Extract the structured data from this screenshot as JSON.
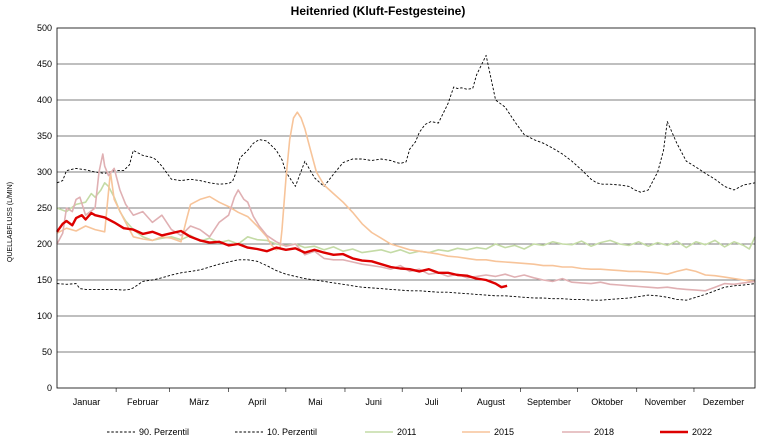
{
  "chart_data": {
    "type": "line",
    "title": "Heitenried (Kluft-Festgesteine)",
    "ylabel": "QUELLABFLUSS (L/MIN)",
    "xlabel": "",
    "ylim": [
      0,
      500
    ],
    "yticks": [
      0,
      50,
      100,
      150,
      200,
      250,
      300,
      350,
      400,
      450,
      500
    ],
    "xlim": [
      0,
      366
    ],
    "grid": "horizontal",
    "legend": "bottom",
    "categories": [
      "Januar",
      "Februar",
      "März",
      "April",
      "Mai",
      "Juni",
      "Juli",
      "August",
      "September",
      "Oktober",
      "November",
      "Dezember"
    ],
    "series": [
      {
        "name": "90. Perzentil",
        "color": "#000000",
        "dash": "dashed",
        "x": [
          0,
          3,
          5,
          10,
          15,
          20,
          25,
          30,
          35,
          38,
          40,
          45,
          50,
          52,
          55,
          60,
          65,
          70,
          75,
          80,
          85,
          90,
          92,
          94,
          96,
          100,
          103,
          106,
          110,
          115,
          118,
          120,
          125,
          130,
          135,
          140,
          145,
          150,
          155,
          160,
          165,
          170,
          175,
          178,
          180,
          183,
          185,
          188,
          190,
          193,
          196,
          200,
          205,
          208,
          210,
          212,
          215,
          218,
          220,
          225,
          230,
          235,
          240,
          245,
          250,
          255,
          260,
          265,
          270,
          275,
          280,
          283,
          286,
          290,
          295,
          300,
          303,
          306,
          310,
          315,
          318,
          320,
          325,
          330,
          335,
          340,
          345,
          350,
          355,
          360,
          366
        ],
        "values": [
          285,
          288,
          302,
          305,
          303,
          300,
          298,
          302,
          302,
          310,
          330,
          323,
          320,
          317,
          308,
          290,
          288,
          290,
          288,
          285,
          283,
          284,
          287,
          300,
          320,
          330,
          340,
          345,
          343,
          330,
          317,
          300,
          280,
          315,
          292,
          280,
          297,
          313,
          318,
          318,
          316,
          318,
          316,
          313,
          312,
          314,
          332,
          342,
          355,
          366,
          370,
          368,
          395,
          418,
          416,
          417,
          415,
          416,
          435,
          462,
          400,
          390,
          370,
          352,
          345,
          340,
          333,
          325,
          315,
          303,
          290,
          285,
          283,
          283,
          282,
          280,
          275,
          272,
          275,
          300,
          330,
          370,
          340,
          315,
          307,
          298,
          290,
          280,
          275,
          282,
          285
        ]
      },
      {
        "name": "10. Perzentil",
        "color": "#000000",
        "dash": "dashed",
        "x": [
          0,
          5,
          10,
          12,
          15,
          20,
          30,
          35,
          38,
          40,
          45,
          50,
          55,
          60,
          65,
          70,
          75,
          80,
          85,
          90,
          95,
          100,
          105,
          110,
          115,
          120,
          125,
          130,
          135,
          140,
          145,
          150,
          155,
          160,
          165,
          170,
          175,
          180,
          185,
          190,
          195,
          200,
          205,
          210,
          215,
          220,
          225,
          230,
          235,
          240,
          245,
          250,
          255,
          260,
          265,
          270,
          275,
          280,
          285,
          290,
          295,
          300,
          305,
          310,
          315,
          320,
          325,
          330,
          335,
          340,
          345,
          350,
          355,
          360,
          366
        ],
        "values": [
          145,
          144,
          145,
          138,
          137,
          137,
          137,
          136,
          137,
          139,
          148,
          150,
          153,
          157,
          160,
          162,
          164,
          168,
          172,
          175,
          178,
          178,
          176,
          170,
          163,
          158,
          155,
          152,
          150,
          148,
          146,
          144,
          142,
          140,
          139,
          138,
          137,
          136,
          135,
          135,
          134,
          133,
          133,
          132,
          131,
          130,
          129,
          128,
          128,
          127,
          126,
          125,
          125,
          124,
          124,
          123,
          123,
          122,
          122,
          123,
          124,
          125,
          127,
          129,
          128,
          126,
          123,
          122,
          126,
          130,
          135,
          140,
          142,
          143,
          145
        ]
      },
      {
        "name": "2011",
        "color": "#c4dba6",
        "dash": "solid",
        "x": [
          0,
          5,
          10,
          15,
          18,
          20,
          23,
          25,
          27,
          30,
          33,
          36,
          40,
          45,
          50,
          55,
          60,
          65,
          70,
          75,
          80,
          85,
          90,
          95,
          100,
          105,
          110,
          115,
          120,
          125,
          130,
          135,
          140,
          145,
          150,
          155,
          160,
          165,
          170,
          175,
          180,
          185,
          190,
          195,
          200,
          205,
          210,
          215,
          220,
          225,
          230,
          235,
          240,
          245,
          250,
          255,
          260,
          265,
          270,
          275,
          280,
          285,
          290,
          295,
          300,
          305,
          310,
          315,
          320,
          325,
          330,
          335,
          340,
          345,
          350,
          355,
          360,
          363,
          366
        ],
        "values": [
          250,
          245,
          255,
          258,
          270,
          265,
          275,
          285,
          280,
          265,
          245,
          232,
          220,
          210,
          205,
          208,
          210,
          206,
          212,
          204,
          208,
          202,
          205,
          200,
          210,
          206,
          205,
          200,
          198,
          200,
          195,
          197,
          192,
          196,
          190,
          193,
          188,
          190,
          192,
          188,
          192,
          187,
          190,
          188,
          192,
          190,
          194,
          192,
          195,
          193,
          200,
          195,
          198,
          193,
          200,
          198,
          203,
          200,
          199,
          204,
          197,
          202,
          205,
          200,
          198,
          203,
          197,
          202,
          198,
          204,
          195,
          203,
          199,
          205,
          196,
          203,
          198,
          193,
          210
        ]
      },
      {
        "name": "2015",
        "color": "#f7c49a",
        "dash": "solid",
        "x": [
          0,
          5,
          10,
          15,
          20,
          25,
          28,
          30,
          35,
          40,
          45,
          50,
          55,
          60,
          65,
          68,
          70,
          75,
          80,
          85,
          90,
          95,
          100,
          105,
          110,
          112,
          115,
          117,
          118,
          120,
          122,
          124,
          126,
          128,
          130,
          133,
          136,
          140,
          145,
          150,
          155,
          160,
          165,
          170,
          175,
          180,
          185,
          190,
          195,
          200,
          205,
          210,
          215,
          220,
          225,
          230,
          235,
          240,
          245,
          250,
          255,
          260,
          265,
          270,
          275,
          280,
          285,
          290,
          295,
          300,
          305,
          310,
          315,
          320,
          325,
          330,
          335,
          340,
          345,
          350,
          355,
          360,
          366
        ],
        "values": [
          215,
          222,
          218,
          225,
          220,
          217,
          300,
          262,
          235,
          210,
          207,
          205,
          210,
          208,
          203,
          235,
          255,
          262,
          266,
          258,
          252,
          244,
          238,
          225,
          210,
          200,
          192,
          195,
          220,
          290,
          345,
          375,
          383,
          375,
          360,
          330,
          300,
          282,
          270,
          258,
          244,
          228,
          216,
          208,
          200,
          196,
          192,
          190,
          188,
          186,
          183,
          182,
          180,
          178,
          178,
          176,
          175,
          174,
          173,
          172,
          170,
          170,
          168,
          168,
          166,
          165,
          165,
          164,
          163,
          162,
          162,
          161,
          160,
          158,
          162,
          165,
          162,
          157,
          156,
          154,
          152,
          150,
          148
        ]
      },
      {
        "name": "2018",
        "color": "#e0b0b3",
        "dash": "solid",
        "x": [
          0,
          3,
          5,
          8,
          10,
          12,
          15,
          20,
          22,
          24,
          25,
          27,
          30,
          33,
          36,
          40,
          45,
          50,
          55,
          60,
          65,
          70,
          75,
          80,
          85,
          90,
          93,
          95,
          98,
          100,
          103,
          106,
          110,
          115,
          120,
          125,
          130,
          135,
          140,
          145,
          150,
          155,
          160,
          165,
          170,
          175,
          180,
          185,
          190,
          195,
          200,
          205,
          210,
          215,
          220,
          225,
          230,
          235,
          240,
          245,
          250,
          255,
          260,
          265,
          270,
          275,
          280,
          285,
          290,
          295,
          300,
          305,
          310,
          315,
          320,
          325,
          330,
          335,
          340,
          345,
          350,
          355,
          360,
          366
        ],
        "values": [
          200,
          215,
          250,
          245,
          262,
          265,
          240,
          250,
          300,
          325,
          308,
          295,
          305,
          275,
          255,
          240,
          245,
          230,
          240,
          220,
          212,
          225,
          220,
          210,
          230,
          240,
          265,
          275,
          262,
          258,
          238,
          225,
          212,
          203,
          197,
          200,
          185,
          190,
          180,
          178,
          178,
          175,
          172,
          170,
          168,
          165,
          170,
          162,
          165,
          158,
          160,
          155,
          158,
          153,
          155,
          157,
          155,
          158,
          154,
          157,
          153,
          150,
          148,
          152,
          147,
          146,
          145,
          147,
          144,
          143,
          142,
          141,
          140,
          139,
          140,
          138,
          137,
          136,
          135,
          140,
          145,
          144,
          146,
          148
        ]
      },
      {
        "name": "2022",
        "color": "#dd0000",
        "dash": "solid",
        "x": [
          0,
          3,
          5,
          8,
          10,
          13,
          15,
          18,
          20,
          25,
          30,
          35,
          40,
          45,
          50,
          55,
          60,
          65,
          70,
          75,
          80,
          85,
          90,
          95,
          100,
          105,
          110,
          115,
          120,
          125,
          130,
          135,
          140,
          145,
          150,
          155,
          160,
          165,
          170,
          175,
          180,
          185,
          190,
          195,
          200,
          205,
          210,
          215,
          220,
          225,
          230,
          233,
          236
        ],
        "values": [
          217,
          228,
          232,
          226,
          236,
          240,
          234,
          243,
          240,
          237,
          230,
          222,
          220,
          214,
          217,
          212,
          215,
          218,
          210,
          205,
          202,
          203,
          198,
          200,
          195,
          193,
          190,
          195,
          192,
          194,
          188,
          192,
          188,
          185,
          186,
          180,
          177,
          176,
          172,
          168,
          166,
          165,
          162,
          165,
          160,
          160,
          157,
          156,
          152,
          150,
          145,
          140,
          142
        ]
      }
    ]
  }
}
